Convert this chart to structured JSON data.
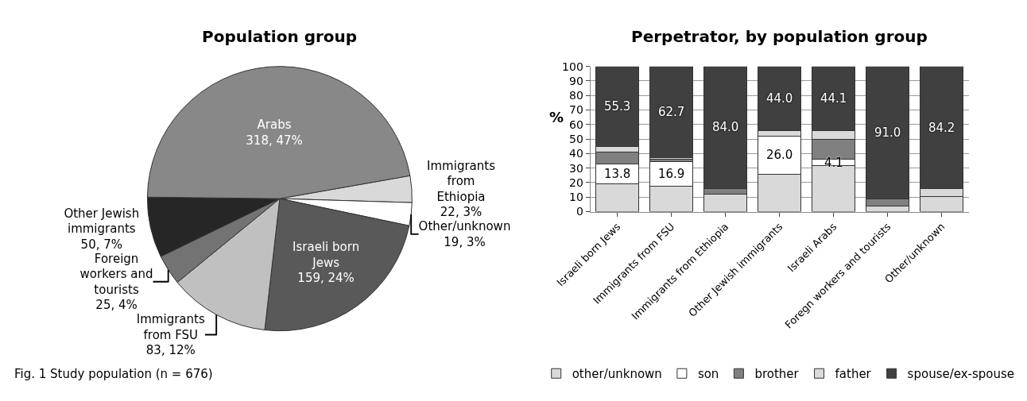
{
  "chart_data": [
    {
      "type": "pie",
      "title": "Population group",
      "categories": [
        "Immigrants from Ethiopia",
        "Other/unknown",
        "Israeli born Jews",
        "Immigrants from FSU",
        "Foreign workers and tourists",
        "Other Jewish immigrants",
        "Arabs"
      ],
      "values": [
        22,
        19,
        159,
        83,
        25,
        50,
        318
      ],
      "value_labels": [
        "22, 3%",
        "19, 3%",
        "159, 24%",
        "83, 12%",
        "25, 4%",
        "50, 7%",
        "318, 47%"
      ],
      "colors": [
        "#d9d9d9",
        "#ffffff",
        "#595959",
        "#c0c0c0",
        "#737373",
        "#262626",
        "#888888"
      ],
      "annotations": [
        "Fig. 1 Study population (n = 676)"
      ]
    },
    {
      "type": "bar",
      "stacked": true,
      "title": "Perpetrator, by population group",
      "ylabel": "%",
      "categories": [
        "Israeli born Jews",
        "Immigrants from FSU",
        "Immigrants from Ethiopia",
        "Other Jewish immigrants",
        "Israeli Arabs",
        "Foregn workers and tourists",
        "Other/unknown"
      ],
      "series": [
        {
          "name": "other/unknown",
          "color": "#d9d9d9",
          "values": [
            19,
            17.7,
            12,
            26,
            31.8,
            4,
            10.5
          ]
        },
        {
          "name": "son",
          "color": "#ffffff",
          "values": [
            13.8,
            16.9,
            0,
            26.0,
            4.1,
            0,
            0
          ],
          "value_labels": [
            "13.8",
            "16.9",
            null,
            "26.0",
            "4.1",
            null,
            null
          ]
        },
        {
          "name": "brother",
          "color": "#808080",
          "values": [
            8.4,
            1.5,
            4,
            0,
            14,
            5,
            0
          ]
        },
        {
          "name": "father",
          "color": "#d9d9d9",
          "values": [
            3.5,
            1.2,
            0,
            4,
            6,
            0,
            5.3
          ]
        },
        {
          "name": "spouse/ex-spouse",
          "color": "#404040",
          "values": [
            55.3,
            62.7,
            84.0,
            44.0,
            44.1,
            91.0,
            84.2
          ],
          "value_labels": [
            "55.3",
            "62.7",
            "84.0",
            "44.0",
            "44.1",
            "91.0",
            "84.2"
          ]
        }
      ],
      "ylim": [
        0,
        100
      ],
      "yticks": [
        0,
        10,
        20,
        30,
        40,
        50,
        60,
        70,
        80,
        90,
        100
      ],
      "grid": "y",
      "legend": "bottom"
    }
  ]
}
